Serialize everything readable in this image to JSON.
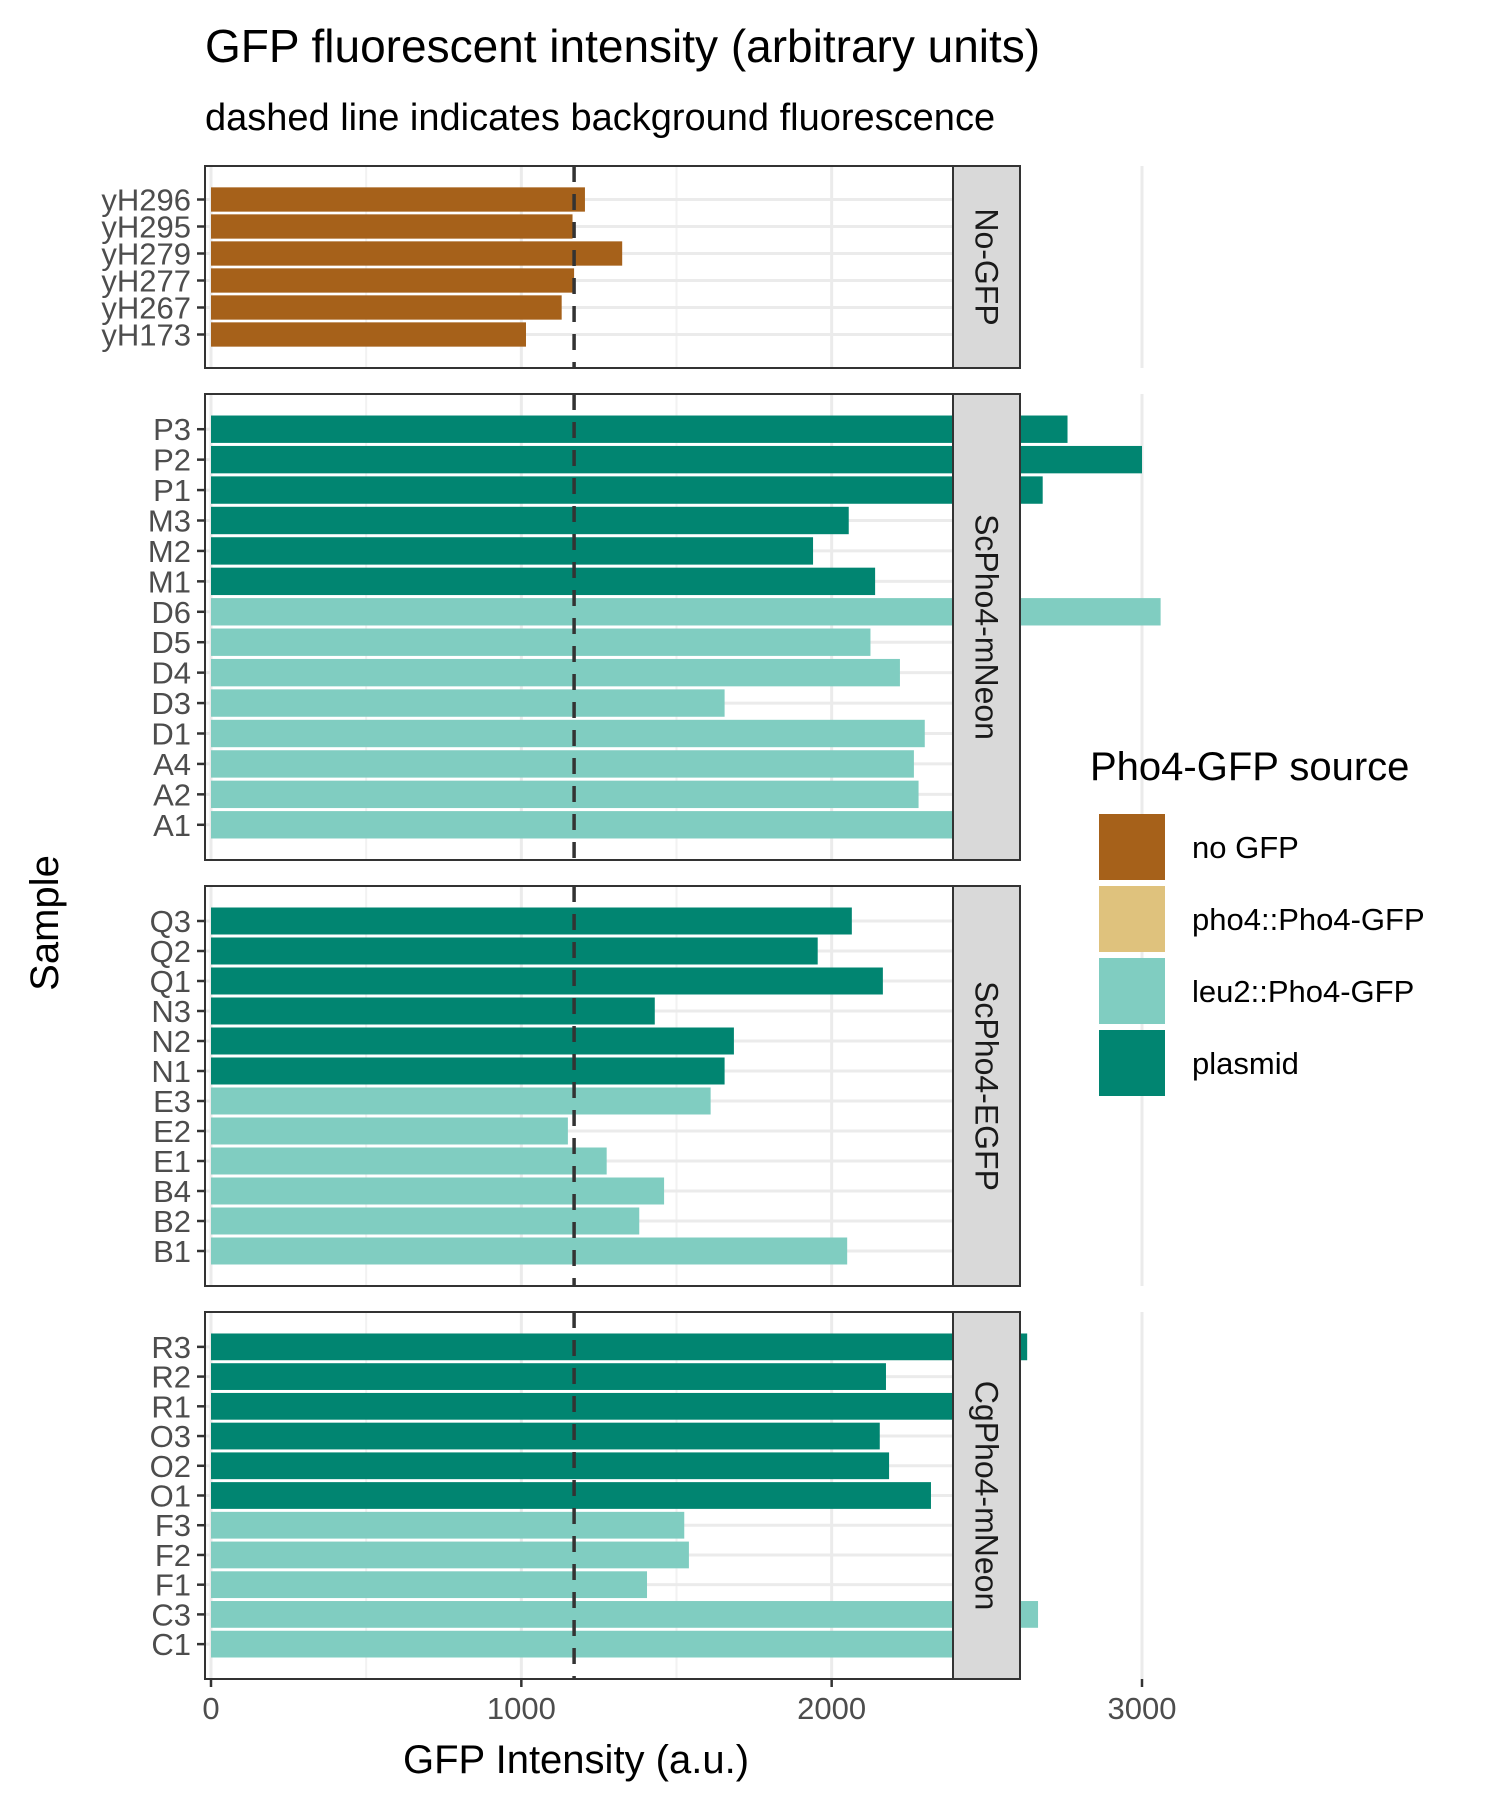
{
  "chart_data": {
    "type": "bar",
    "orientation": "horizontal",
    "faceted": true,
    "title": "GFP fluorescent intensity (arbitrary units)",
    "subtitle": "dashed line indicates background fluorescence",
    "xlabel": "GFP Intensity (a.u.)",
    "ylabel": "Sample",
    "xlim": [
      0,
      3390
    ],
    "x_ticks": [
      0,
      1000,
      2000,
      3000
    ],
    "background_line": 1170,
    "grid": true,
    "legend": {
      "title": "Pho4-GFP source",
      "position": "right",
      "entries": [
        {
          "key": "no_gfp",
          "label": "no GFP",
          "color": "#A6611A"
        },
        {
          "key": "pho4",
          "label": "pho4::Pho4-GFP",
          "color": "#DFC27D"
        },
        {
          "key": "leu2",
          "label": "leu2::Pho4-GFP",
          "color": "#80CDC1"
        },
        {
          "key": "plasmid",
          "label": "plasmid",
          "color": "#018571"
        }
      ]
    },
    "panels": [
      {
        "label": "No-GFP",
        "categories": [
          "yH296",
          "yH295",
          "yH279",
          "yH277",
          "yH267",
          "yH173"
        ],
        "values": [
          1205,
          1165,
          1325,
          1170,
          1130,
          1015
        ],
        "sources": [
          "no_gfp",
          "no_gfp",
          "no_gfp",
          "no_gfp",
          "no_gfp",
          "no_gfp"
        ]
      },
      {
        "label": "ScPho4-mNeon",
        "categories": [
          "P3",
          "P2",
          "P1",
          "M3",
          "M2",
          "M1",
          "D6",
          "D5",
          "D4",
          "D3",
          "D1",
          "A4",
          "A2",
          "A1"
        ],
        "values": [
          2760,
          3000,
          2680,
          2055,
          1940,
          2140,
          3060,
          2125,
          2220,
          1655,
          2300,
          2265,
          2280,
          2445
        ],
        "sources": [
          "plasmid",
          "plasmid",
          "plasmid",
          "plasmid",
          "plasmid",
          "plasmid",
          "leu2",
          "leu2",
          "leu2",
          "leu2",
          "leu2",
          "leu2",
          "leu2",
          "leu2"
        ]
      },
      {
        "label": "ScPho4-EGFP",
        "categories": [
          "Q3",
          "Q2",
          "Q1",
          "N3",
          "N2",
          "N1",
          "E3",
          "E2",
          "E1",
          "B4",
          "B2",
          "B1"
        ],
        "values": [
          2065,
          1955,
          2165,
          1430,
          1685,
          1655,
          1610,
          1150,
          1275,
          1460,
          1380,
          2050
        ],
        "sources": [
          "plasmid",
          "plasmid",
          "plasmid",
          "plasmid",
          "plasmid",
          "plasmid",
          "leu2",
          "leu2",
          "leu2",
          "leu2",
          "leu2",
          "leu2"
        ]
      },
      {
        "label": "CgPho4-mNeon",
        "categories": [
          "R3",
          "R2",
          "R1",
          "O3",
          "O2",
          "O1",
          "F3",
          "F2",
          "F1",
          "C3",
          "C1"
        ],
        "values": [
          2630,
          2175,
          2415,
          2155,
          2185,
          2320,
          1525,
          1540,
          1405,
          2665,
          2415
        ],
        "sources": [
          "plasmid",
          "plasmid",
          "plasmid",
          "plasmid",
          "plasmid",
          "plasmid",
          "leu2",
          "leu2",
          "leu2",
          "leu2",
          "leu2"
        ]
      }
    ]
  }
}
